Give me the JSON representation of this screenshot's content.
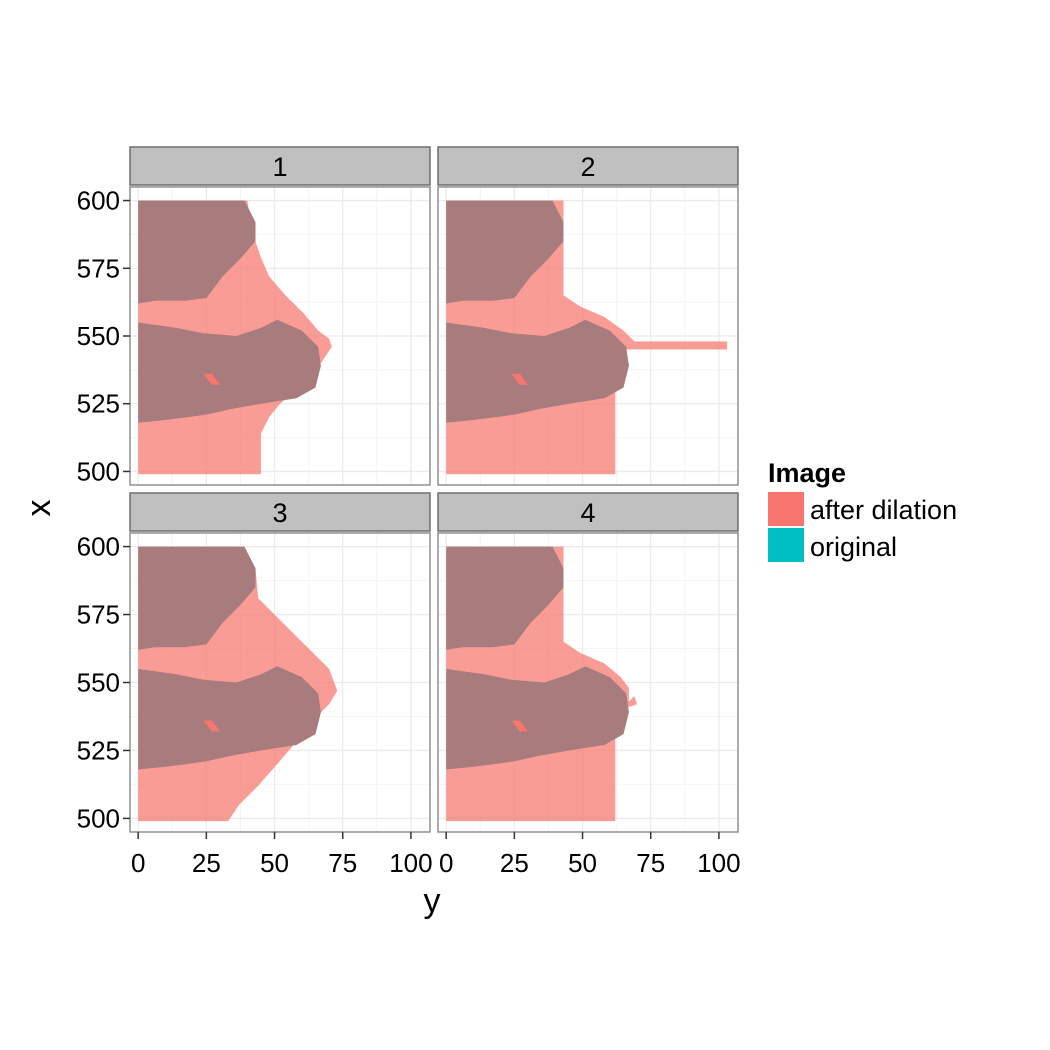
{
  "chart_data": {
    "type": "raster",
    "facets": [
      "1",
      "2",
      "3",
      "4"
    ],
    "xlabel": "y",
    "ylabel": "x",
    "xlim": [
      -3,
      107
    ],
    "ylim": [
      495,
      605
    ],
    "x_ticks": [
      0,
      25,
      50,
      75,
      100
    ],
    "y_ticks": [
      500,
      525,
      550,
      575,
      600
    ],
    "x_tick_labels": [
      "0",
      "25",
      "50",
      "75",
      "100"
    ],
    "y_tick_labels": [
      "500",
      "525",
      "550",
      "575",
      "600"
    ],
    "grid": true,
    "legend": {
      "title": "Image",
      "position": "right",
      "entries": [
        {
          "label": "after dilation",
          "color": "#F8766D"
        },
        {
          "label": "original",
          "color": "#00BFC4"
        }
      ]
    },
    "colors": {
      "after_dilation": "#F8766D",
      "overlap": "#A87C7C",
      "strip_fill": "#C0C0C0",
      "strip_border": "#6E6E6E",
      "grid": "#EBEBEB"
    },
    "original_regions": [
      {
        "name": "top",
        "polygon": [
          [
            0,
            600
          ],
          [
            39,
            600
          ],
          [
            43,
            592
          ],
          [
            43,
            585
          ],
          [
            37,
            578
          ],
          [
            31,
            572
          ],
          [
            25,
            564
          ],
          [
            17,
            563
          ],
          [
            6,
            563
          ],
          [
            0,
            562
          ]
        ]
      },
      {
        "name": "middle",
        "polygon": [
          [
            0,
            555
          ],
          [
            14,
            553
          ],
          [
            24,
            551
          ],
          [
            36,
            550
          ],
          [
            45,
            553
          ],
          [
            51,
            556
          ],
          [
            60,
            552
          ],
          [
            66,
            546
          ],
          [
            67,
            539
          ],
          [
            65,
            531
          ],
          [
            58,
            527
          ],
          [
            45,
            525
          ],
          [
            34,
            523
          ],
          [
            25,
            521
          ],
          [
            18,
            520
          ],
          [
            10,
            519
          ],
          [
            0,
            518
          ]
        ]
      }
    ],
    "dilated_regions": {
      "1": [
        [
          0,
          600
        ],
        [
          40,
          600
        ],
        [
          42,
          588
        ],
        [
          45,
          579
        ],
        [
          48,
          572
        ],
        [
          54,
          565
        ],
        [
          61,
          558
        ],
        [
          66,
          552
        ],
        [
          70,
          549
        ],
        [
          71,
          546
        ],
        [
          65,
          537
        ],
        [
          58,
          530
        ],
        [
          52,
          525
        ],
        [
          48,
          520
        ],
        [
          45,
          514
        ],
        [
          45,
          507
        ],
        [
          45,
          499
        ],
        [
          0,
          499
        ]
      ],
      "2": [
        [
          0,
          600
        ],
        [
          43,
          600
        ],
        [
          43,
          565
        ],
        [
          49,
          561
        ],
        [
          58,
          557
        ],
        [
          65,
          552
        ],
        [
          69,
          548
        ],
        [
          103,
          548
        ],
        [
          103,
          545
        ],
        [
          64,
          545
        ],
        [
          62,
          539
        ],
        [
          62,
          525
        ],
        [
          62,
          499
        ],
        [
          0,
          499
        ]
      ],
      "3": [
        [
          0,
          600
        ],
        [
          38,
          600
        ],
        [
          43,
          592
        ],
        [
          44,
          581
        ],
        [
          49,
          576
        ],
        [
          56,
          569
        ],
        [
          63,
          562
        ],
        [
          70,
          555
        ],
        [
          73,
          547
        ],
        [
          70,
          542
        ],
        [
          64,
          536
        ],
        [
          57,
          527
        ],
        [
          51,
          520
        ],
        [
          44,
          512
        ],
        [
          37,
          505
        ],
        [
          33,
          499
        ],
        [
          0,
          499
        ]
      ],
      "4": [
        [
          0,
          600
        ],
        [
          43,
          600
        ],
        [
          43,
          565
        ],
        [
          49,
          561
        ],
        [
          58,
          557
        ],
        [
          64,
          552
        ],
        [
          67,
          548
        ],
        [
          67,
          543
        ],
        [
          69,
          545
        ],
        [
          70,
          542
        ],
        [
          64,
          540
        ],
        [
          62,
          535
        ],
        [
          62,
          525
        ],
        [
          62,
          499
        ],
        [
          0,
          499
        ]
      ]
    }
  }
}
